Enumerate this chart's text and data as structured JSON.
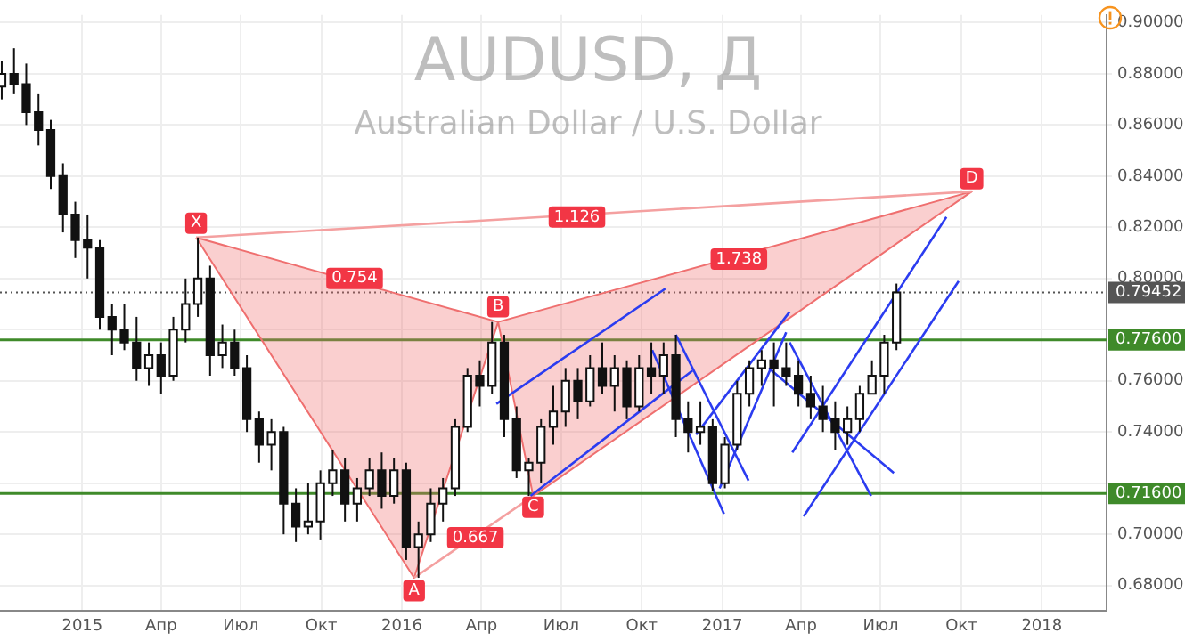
{
  "chart_data": {
    "type": "candlestick",
    "title": "AUDUSD, Д",
    "subtitle": "Australian Dollar / U.S. Dollar",
    "x": [
      "2014-10-01",
      "2014-10-15",
      "2014-10-29",
      "2014-11-12",
      "2014-11-26",
      "2014-12-10",
      "2014-12-24",
      "2015-01-07",
      "2015-01-21",
      "2015-02-04",
      "2015-02-18",
      "2015-03-04",
      "2015-03-18",
      "2015-04-01",
      "2015-04-15",
      "2015-04-29",
      "2015-05-13",
      "2015-05-27",
      "2015-06-10",
      "2015-06-24",
      "2015-07-08",
      "2015-07-22",
      "2015-08-05",
      "2015-08-19",
      "2015-09-02",
      "2015-09-16",
      "2015-09-30",
      "2015-10-14",
      "2015-10-28",
      "2015-11-11",
      "2015-11-25",
      "2015-12-09",
      "2015-12-23",
      "2016-01-06",
      "2016-01-20",
      "2016-02-03",
      "2016-02-17",
      "2016-03-02",
      "2016-03-16",
      "2016-03-30",
      "2016-04-13",
      "2016-04-27",
      "2016-05-11",
      "2016-05-25",
      "2016-06-08",
      "2016-06-22",
      "2016-07-06",
      "2016-07-20",
      "2016-08-03",
      "2016-08-17",
      "2016-08-31",
      "2016-09-14",
      "2016-09-28",
      "2016-10-12",
      "2016-10-26",
      "2016-11-09",
      "2016-11-23",
      "2016-12-07",
      "2016-12-21",
      "2017-01-04",
      "2017-01-18",
      "2017-02-01",
      "2017-02-15",
      "2017-03-01",
      "2017-03-15",
      "2017-03-29",
      "2017-04-12",
      "2017-04-26",
      "2017-05-10",
      "2017-05-24",
      "2017-06-07",
      "2017-06-21",
      "2017-07-05",
      "2017-07-19"
    ],
    "ohlc": [
      [
        0.875,
        0.885,
        0.87,
        0.88
      ],
      [
        0.88,
        0.89,
        0.872,
        0.876
      ],
      [
        0.876,
        0.884,
        0.86,
        0.865
      ],
      [
        0.865,
        0.872,
        0.852,
        0.858
      ],
      [
        0.858,
        0.862,
        0.835,
        0.84
      ],
      [
        0.84,
        0.845,
        0.818,
        0.825
      ],
      [
        0.825,
        0.83,
        0.808,
        0.815
      ],
      [
        0.815,
        0.825,
        0.8,
        0.812
      ],
      [
        0.812,
        0.815,
        0.78,
        0.785
      ],
      [
        0.785,
        0.79,
        0.77,
        0.78
      ],
      [
        0.78,
        0.79,
        0.772,
        0.775
      ],
      [
        0.775,
        0.785,
        0.76,
        0.765
      ],
      [
        0.765,
        0.775,
        0.758,
        0.77
      ],
      [
        0.77,
        0.775,
        0.755,
        0.762
      ],
      [
        0.762,
        0.785,
        0.76,
        0.78
      ],
      [
        0.78,
        0.8,
        0.775,
        0.79
      ],
      [
        0.79,
        0.816,
        0.785,
        0.8
      ],
      [
        0.8,
        0.805,
        0.762,
        0.77
      ],
      [
        0.77,
        0.782,
        0.765,
        0.775
      ],
      [
        0.775,
        0.78,
        0.762,
        0.765
      ],
      [
        0.765,
        0.77,
        0.74,
        0.745
      ],
      [
        0.745,
        0.748,
        0.728,
        0.735
      ],
      [
        0.735,
        0.745,
        0.725,
        0.74
      ],
      [
        0.74,
        0.742,
        0.7,
        0.712
      ],
      [
        0.712,
        0.718,
        0.697,
        0.703
      ],
      [
        0.703,
        0.72,
        0.7,
        0.705
      ],
      [
        0.705,
        0.725,
        0.698,
        0.72
      ],
      [
        0.72,
        0.733,
        0.715,
        0.725
      ],
      [
        0.725,
        0.73,
        0.705,
        0.712
      ],
      [
        0.712,
        0.722,
        0.705,
        0.718
      ],
      [
        0.718,
        0.73,
        0.715,
        0.725
      ],
      [
        0.725,
        0.732,
        0.71,
        0.715
      ],
      [
        0.715,
        0.73,
        0.712,
        0.725
      ],
      [
        0.725,
        0.728,
        0.69,
        0.695
      ],
      [
        0.695,
        0.705,
        0.683,
        0.7
      ],
      [
        0.7,
        0.718,
        0.697,
        0.712
      ],
      [
        0.712,
        0.722,
        0.705,
        0.718
      ],
      [
        0.718,
        0.745,
        0.715,
        0.742
      ],
      [
        0.742,
        0.765,
        0.74,
        0.762
      ],
      [
        0.762,
        0.768,
        0.75,
        0.758
      ],
      [
        0.758,
        0.783,
        0.755,
        0.775
      ],
      [
        0.775,
        0.778,
        0.738,
        0.745
      ],
      [
        0.745,
        0.75,
        0.722,
        0.725
      ],
      [
        0.725,
        0.73,
        0.715,
        0.728
      ],
      [
        0.728,
        0.745,
        0.72,
        0.742
      ],
      [
        0.742,
        0.758,
        0.735,
        0.748
      ],
      [
        0.748,
        0.765,
        0.742,
        0.76
      ],
      [
        0.76,
        0.765,
        0.745,
        0.752
      ],
      [
        0.752,
        0.77,
        0.75,
        0.765
      ],
      [
        0.765,
        0.775,
        0.755,
        0.758
      ],
      [
        0.758,
        0.77,
        0.748,
        0.765
      ],
      [
        0.765,
        0.768,
        0.745,
        0.75
      ],
      [
        0.75,
        0.77,
        0.748,
        0.765
      ],
      [
        0.765,
        0.775,
        0.755,
        0.762
      ],
      [
        0.762,
        0.775,
        0.755,
        0.77
      ],
      [
        0.77,
        0.778,
        0.738,
        0.745
      ],
      [
        0.745,
        0.752,
        0.732,
        0.74
      ],
      [
        0.74,
        0.752,
        0.735,
        0.742
      ],
      [
        0.742,
        0.745,
        0.717,
        0.72
      ],
      [
        0.72,
        0.738,
        0.718,
        0.735
      ],
      [
        0.735,
        0.76,
        0.733,
        0.755
      ],
      [
        0.755,
        0.768,
        0.75,
        0.765
      ],
      [
        0.765,
        0.772,
        0.758,
        0.768
      ],
      [
        0.768,
        0.775,
        0.75,
        0.765
      ],
      [
        0.765,
        0.775,
        0.758,
        0.762
      ],
      [
        0.762,
        0.768,
        0.75,
        0.755
      ],
      [
        0.755,
        0.762,
        0.745,
        0.75
      ],
      [
        0.75,
        0.758,
        0.74,
        0.745
      ],
      [
        0.745,
        0.752,
        0.733,
        0.74
      ],
      [
        0.74,
        0.75,
        0.735,
        0.745
      ],
      [
        0.745,
        0.758,
        0.74,
        0.755
      ],
      [
        0.755,
        0.768,
        0.755,
        0.762
      ],
      [
        0.762,
        0.778,
        0.755,
        0.775
      ],
      [
        0.775,
        0.798,
        0.772,
        0.79452
      ]
    ],
    "series": [
      {
        "type": "area",
        "color": "#ef6f6f",
        "x": [
          "2015-05-11",
          "2016-01-15",
          "2016-04-20",
          "2015-05-11"
        ],
        "values": [
          0.816,
          0.683,
          0.783,
          0.816
        ]
      },
      {
        "type": "area",
        "color": "#ef6f6f",
        "x": [
          "2016-04-20",
          "2016-05-30",
          "2017-10-13",
          "2016-04-20"
        ],
        "values": [
          0.783,
          0.715,
          0.834,
          0.783
        ]
      },
      {
        "type": "line",
        "color": "#f4a0a0",
        "x": [
          "2015-05-11",
          "2017-10-13"
        ],
        "values": [
          0.816,
          0.834
        ]
      },
      {
        "type": "line",
        "color": "#f4a0a0",
        "x": [
          "2016-01-15",
          "2016-05-30"
        ],
        "values": [
          0.683,
          0.715
        ]
      },
      {
        "type": "line",
        "color": "#2b3cf0",
        "x": [
          "2016-04-18",
          "2016-10-28"
        ],
        "values": [
          0.751,
          0.796
        ]
      },
      {
        "type": "line",
        "color": "#2b3cf0",
        "x": [
          "2016-05-27",
          "2016-11-28"
        ],
        "values": [
          0.715,
          0.764
        ]
      },
      {
        "type": "line",
        "color": "#2b3cf0",
        "x": [
          "2016-10-13",
          "2017-01-03"
        ],
        "values": [
          0.772,
          0.708
        ]
      },
      {
        "type": "line",
        "color": "#2b3cf0",
        "x": [
          "2016-11-09",
          "2017-01-31"
        ],
        "values": [
          0.778,
          0.721
        ]
      },
      {
        "type": "line",
        "color": "#2b3cf0",
        "x": [
          "2016-12-02",
          "2017-03-19"
        ],
        "values": [
          0.739,
          0.787
        ]
      },
      {
        "type": "line",
        "color": "#2b3cf0",
        "x": [
          "2016-12-29",
          "2017-03-15"
        ],
        "values": [
          0.718,
          0.779
        ]
      },
      {
        "type": "line",
        "color": "#2b3cf0",
        "x": [
          "2017-03-19",
          "2017-06-20"
        ],
        "values": [
          0.775,
          0.715
        ]
      },
      {
        "type": "line",
        "color": "#2b3cf0",
        "x": [
          "2017-02-23",
          "2017-07-16"
        ],
        "values": [
          0.765,
          0.724
        ]
      },
      {
        "type": "line",
        "color": "#2b3cf0",
        "x": [
          "2017-03-22",
          "2017-09-14"
        ],
        "values": [
          0.732,
          0.824
        ]
      },
      {
        "type": "line",
        "color": "#2b3cf0",
        "x": [
          "2017-04-04",
          "2017-09-28"
        ],
        "values": [
          0.707,
          0.799
        ]
      }
    ],
    "ref_lines": [
      {
        "axis": "y",
        "value": 0.776,
        "label": "0.77600",
        "color": "#3f8a2a",
        "line_style": "solid"
      },
      {
        "axis": "y",
        "value": 0.716,
        "label": "0.71600",
        "color": "#3f8a2a",
        "line_style": "solid"
      },
      {
        "axis": "y",
        "value": 0.79452,
        "label": "0.79452",
        "color": "#555555",
        "line_style": "dotted"
      }
    ],
    "annotations": [
      {
        "text": "X",
        "x": "2015-05-11",
        "y": 0.8216
      },
      {
        "text": "A",
        "x": "2016-01-15",
        "y": 0.678
      },
      {
        "text": "B",
        "x": "2016-04-20",
        "y": 0.789
      },
      {
        "text": "C",
        "x": "2016-05-30",
        "y": 0.7106
      },
      {
        "text": "D",
        "x": "2017-10-13",
        "y": 0.839
      },
      {
        "text": "0.754",
        "x": "2015-11-08",
        "y": 0.8
      },
      {
        "text": "1.126",
        "x": "2016-07-19",
        "y": 0.824
      },
      {
        "text": "1.738",
        "x": "2017-01-20",
        "y": 0.8076
      },
      {
        "text": "0.667",
        "x": "2016-03-25",
        "y": 0.6987
      }
    ],
    "xlim": [
      "2014-09-29",
      "2018-03-16"
    ],
    "xticks": [
      {
        "value": "2015-01-01",
        "label": "2015"
      },
      {
        "value": "2015-04-01",
        "label": "Апр"
      },
      {
        "value": "2015-07-01",
        "label": "Июл"
      },
      {
        "value": "2015-10-01",
        "label": "Окт"
      },
      {
        "value": "2016-01-01",
        "label": "2016"
      },
      {
        "value": "2016-04-01",
        "label": "Апр"
      },
      {
        "value": "2016-07-01",
        "label": "Июл"
      },
      {
        "value": "2016-10-01",
        "label": "Окт"
      },
      {
        "value": "2017-01-01",
        "label": "2017"
      },
      {
        "value": "2017-04-01",
        "label": "Апр"
      },
      {
        "value": "2017-07-01",
        "label": "Июл"
      },
      {
        "value": "2017-10-01",
        "label": "Окт"
      },
      {
        "value": "2018-01-01",
        "label": "2018"
      }
    ],
    "ylim": [
      0.67,
      0.903
    ],
    "yticks": [
      {
        "value": 0.68,
        "label": "0.68000"
      },
      {
        "value": 0.7,
        "label": "0.70000"
      },
      {
        "value": 0.72,
        "label": null
      },
      {
        "value": 0.74,
        "label": "0.74000"
      },
      {
        "value": 0.76,
        "label": "0.76000"
      },
      {
        "value": 0.78,
        "label": null
      },
      {
        "value": 0.8,
        "label": "0.80000"
      },
      {
        "value": 0.82,
        "label": "0.82000"
      },
      {
        "value": 0.84,
        "label": "0.84000"
      },
      {
        "value": 0.86,
        "label": "0.86000"
      },
      {
        "value": 0.88,
        "label": "0.88000"
      },
      {
        "value": 0.9,
        "label": "0.90000"
      }
    ],
    "grid": true
  }
}
